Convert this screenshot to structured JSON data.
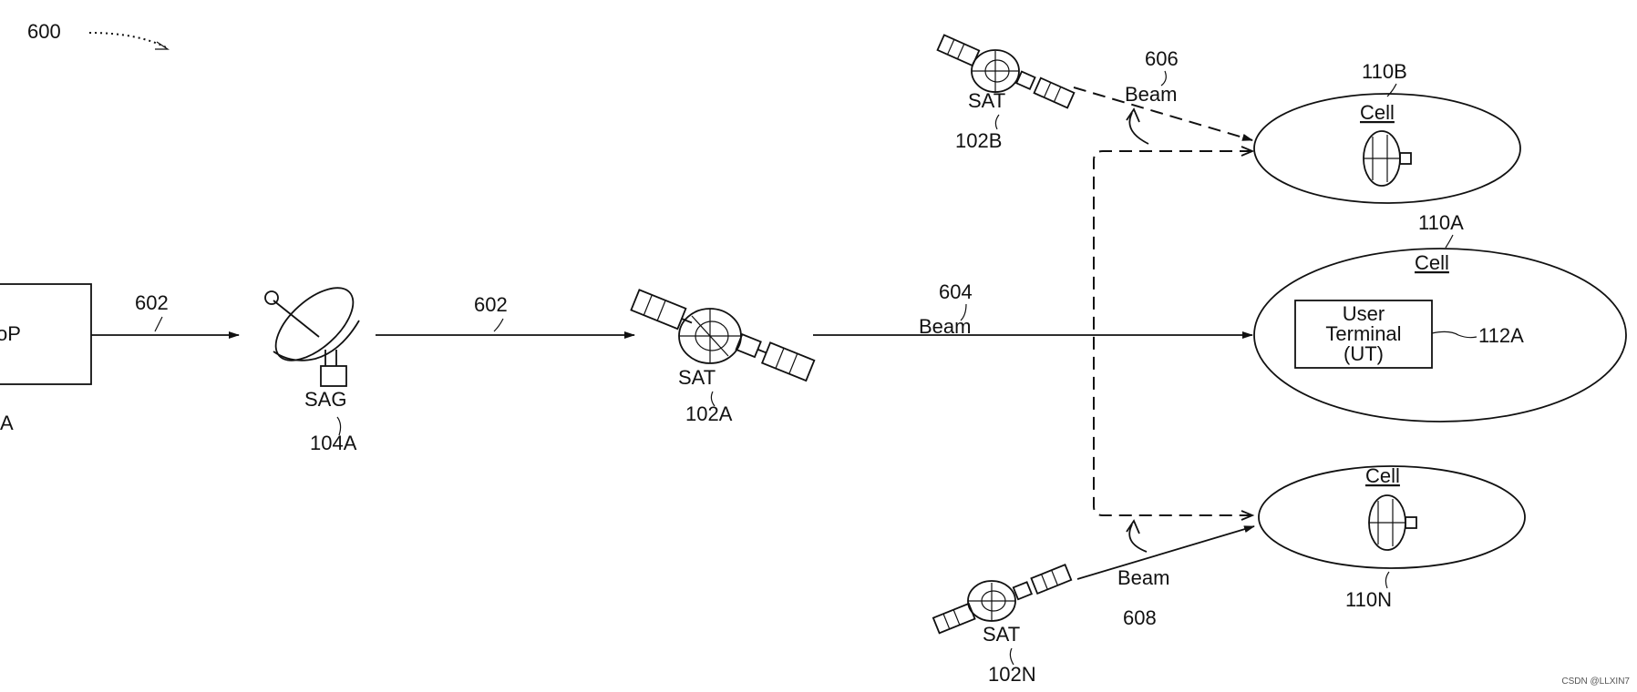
{
  "figure": {
    "number": "600"
  },
  "gateway": {
    "label_partial": "oP",
    "ref_partial": "A"
  },
  "sag": {
    "label": "SAG",
    "ref": "104A"
  },
  "links": {
    "feeder_left": "602",
    "feeder_right": "602"
  },
  "sat_a": {
    "label": "SAT",
    "ref": "102A"
  },
  "sat_b": {
    "label": "SAT",
    "ref": "102B"
  },
  "sat_n": {
    "label": "SAT",
    "ref": "102N"
  },
  "beam_604": {
    "ref": "604",
    "label": "Beam"
  },
  "beam_606": {
    "ref": "606",
    "label": "Beam"
  },
  "beam_608": {
    "ref": "608",
    "label": "Beam"
  },
  "cell_b": {
    "ref": "110B",
    "label": "Cell"
  },
  "cell_a": {
    "ref": "110A",
    "label": "Cell"
  },
  "cell_n": {
    "ref": "110N",
    "label": "Cell"
  },
  "ut": {
    "line1": "User",
    "line2": "Terminal",
    "line3": "(UT)",
    "ref": "112A"
  },
  "watermark": "CSDN @LLXIN7"
}
